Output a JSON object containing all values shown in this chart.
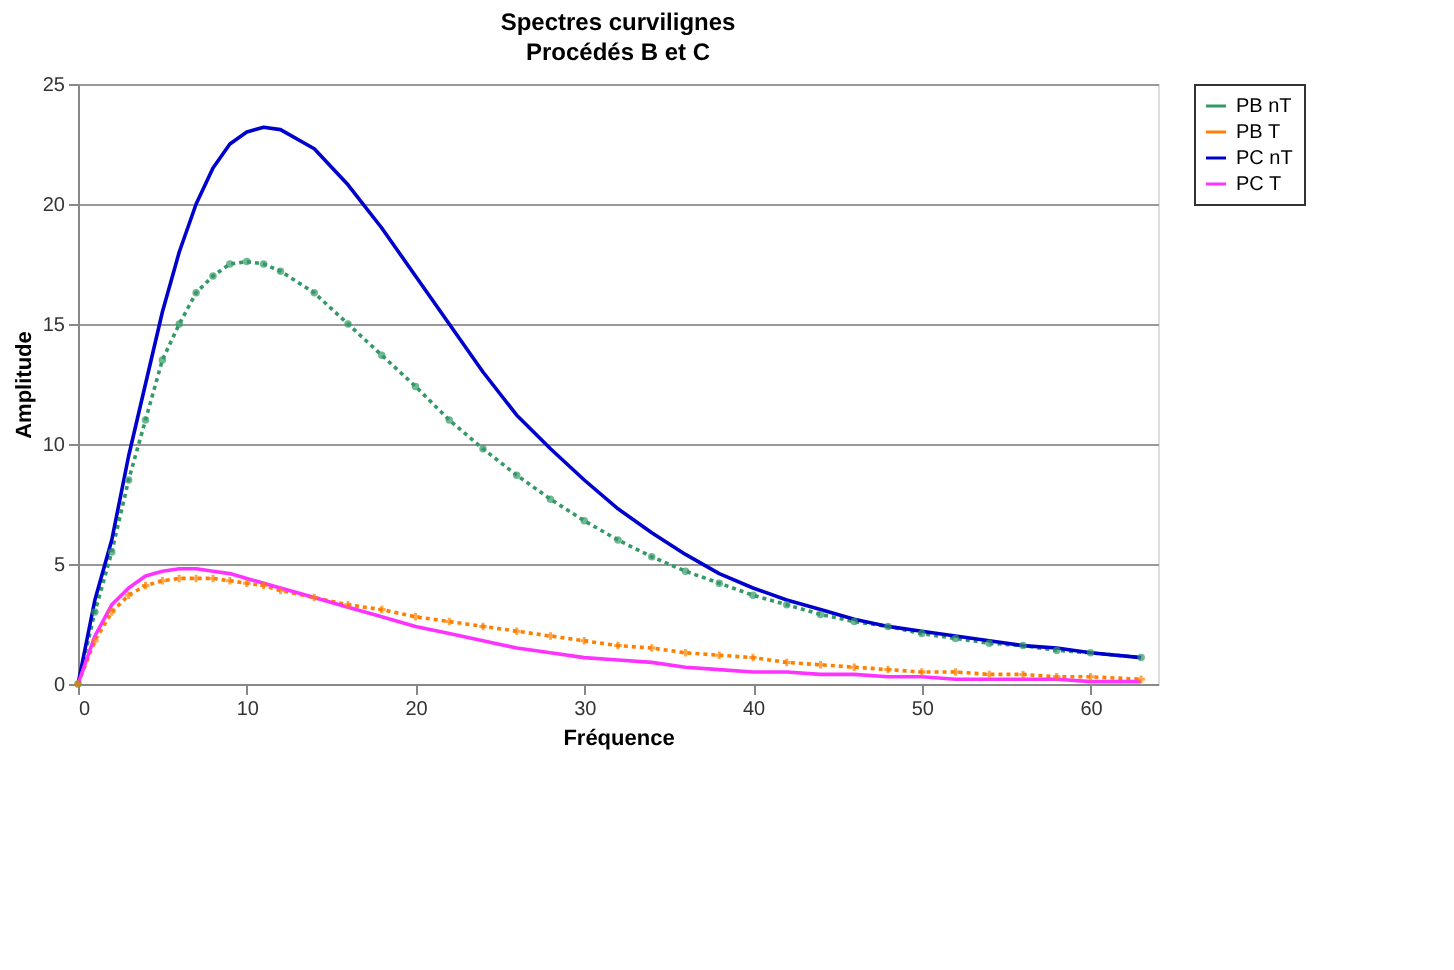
{
  "chart_data": {
    "type": "line",
    "title": "Spectres curvilignes",
    "subtitle": "Procédés B et C",
    "xlabel": "Fréquence",
    "ylabel": "Amplitude",
    "x": [
      0,
      1,
      2,
      3,
      4,
      5,
      6,
      7,
      8,
      9,
      10,
      11,
      12,
      14,
      16,
      18,
      20,
      22,
      24,
      26,
      28,
      30,
      32,
      34,
      36,
      38,
      40,
      42,
      44,
      46,
      48,
      50,
      52,
      54,
      56,
      58,
      60,
      63
    ],
    "xlim": [
      0,
      64
    ],
    "xticks": [
      0,
      10,
      20,
      30,
      40,
      50,
      60
    ],
    "ylim": [
      0,
      25
    ],
    "yticks": [
      0,
      5,
      10,
      15,
      20,
      25
    ],
    "grid": "y",
    "legend": "right",
    "series": [
      {
        "name": "PB nT",
        "color": "#339966",
        "marker": "circle",
        "line_style": "dotted",
        "values": [
          0,
          3,
          5.5,
          8.5,
          11,
          13.5,
          15,
          16.3,
          17,
          17.5,
          17.6,
          17.5,
          17.2,
          16.3,
          15,
          13.7,
          12.4,
          11,
          9.8,
          8.7,
          7.7,
          6.8,
          6,
          5.3,
          4.7,
          4.2,
          3.7,
          3.3,
          2.9,
          2.6,
          2.4,
          2.1,
          1.9,
          1.7,
          1.6,
          1.4,
          1.3,
          1.1
        ]
      },
      {
        "name": "PB T",
        "color": "#ff8000",
        "marker": "cross",
        "line_style": "dotted",
        "values": [
          0,
          1.8,
          3,
          3.7,
          4.1,
          4.3,
          4.4,
          4.4,
          4.4,
          4.3,
          4.2,
          4.1,
          3.9,
          3.6,
          3.3,
          3.1,
          2.8,
          2.6,
          2.4,
          2.2,
          2,
          1.8,
          1.6,
          1.5,
          1.3,
          1.2,
          1.1,
          0.9,
          0.8,
          0.7,
          0.6,
          0.5,
          0.5,
          0.4,
          0.4,
          0.3,
          0.3,
          0.2
        ]
      },
      {
        "name": "PC nT",
        "color": "#0000cc",
        "marker": "none",
        "line_style": "solid",
        "values": [
          0,
          3.5,
          6,
          9.5,
          12.5,
          15.5,
          18,
          20,
          21.5,
          22.5,
          23,
          23.2,
          23.1,
          22.3,
          20.8,
          19,
          17,
          15,
          13,
          11.2,
          9.8,
          8.5,
          7.3,
          6.3,
          5.4,
          4.6,
          4,
          3.5,
          3.1,
          2.7,
          2.4,
          2.2,
          2,
          1.8,
          1.6,
          1.5,
          1.3,
          1.1
        ]
      },
      {
        "name": "PC T",
        "color": "#ff33ff",
        "marker": "none",
        "line_style": "solid",
        "values": [
          0,
          2,
          3.3,
          4,
          4.5,
          4.7,
          4.8,
          4.8,
          4.7,
          4.6,
          4.4,
          4.2,
          4,
          3.6,
          3.2,
          2.8,
          2.4,
          2.1,
          1.8,
          1.5,
          1.3,
          1.1,
          1,
          0.9,
          0.7,
          0.6,
          0.5,
          0.5,
          0.4,
          0.4,
          0.3,
          0.3,
          0.2,
          0.2,
          0.2,
          0.2,
          0.1,
          0.1
        ]
      }
    ]
  }
}
